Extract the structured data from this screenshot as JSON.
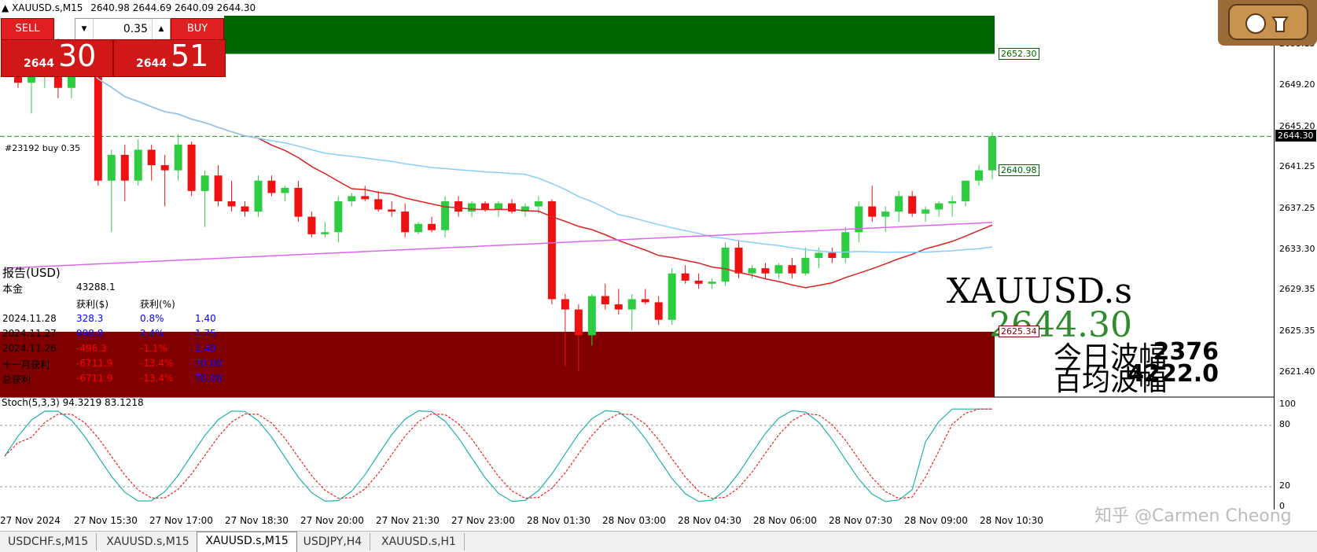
{
  "header": {
    "symbol": "XAUUSD.s,M15",
    "ohlc": "2640.98 2644.69 2640.09 2644.30"
  },
  "trade_panel": {
    "sell_label": "SELL",
    "buy_label": "BUY",
    "lot": "0.35",
    "sell_big": "2644",
    "sell_pts": "30",
    "buy_big": "2644",
    "buy_pts": "51"
  },
  "price_axis": {
    "labels": [
      "2653.15",
      "2649.20",
      "2645.20",
      "2641.25",
      "2637.25",
      "2633.30",
      "2629.35",
      "2625.35",
      "2621.40"
    ],
    "current_price": "2644.30",
    "tp_label": "2652.30",
    "sl_label": "2625.34",
    "close_label": "2640.98"
  },
  "order_label": "#23192 buy 0.35",
  "report": {
    "title": "报告(USD)",
    "capital_label": "本金",
    "capital_value": "43288.1",
    "col_profit": "获利($)",
    "col_profit_pct": "获利(%)",
    "rows": [
      {
        "date": "2024.11.28",
        "profit": "328.3",
        "pct": "0.8%",
        "extra": "1.40",
        "color": "#0000ff"
      },
      {
        "date": "2024.11.27",
        "profit": "998.8",
        "pct": "2.4%",
        "extra": "1.75",
        "color": "#0000ff"
      },
      {
        "date": "2024.11.26",
        "profit": "-496.3",
        "pct": "-1.1%",
        "extra": "1.49",
        "color": "#ff0000"
      },
      {
        "date": "十一月获利",
        "profit": "-6711.9",
        "pct": "-13.4%",
        "extra": "70.00",
        "color": "#ff0000"
      },
      {
        "date": "总获利",
        "profit": "-6711.9",
        "pct": "-13.4%",
        "extra": "70.00",
        "color": "#ff0000"
      }
    ]
  },
  "overlay": {
    "symbol": "XAUUSD.s",
    "price": "2644.30",
    "today_range_label": "今日波幅",
    "today_range_value": "2376",
    "avg_range_label": "百均波幅",
    "avg_range_value": "4222.0"
  },
  "stoch": {
    "label": "Stoch(5,3,3) 94.3219 83.1218",
    "axis": [
      "100",
      "80",
      "20",
      "0"
    ]
  },
  "time_axis": [
    "27 Nov 2024",
    "27 Nov 15:30",
    "27 Nov 17:00",
    "27 Nov 18:30",
    "27 Nov 20:00",
    "27 Nov 21:30",
    "27 Nov 23:00",
    "28 Nov 01:30",
    "28 Nov 03:00",
    "28 Nov 04:30",
    "28 Nov 06:00",
    "28 Nov 07:30",
    "28 Nov 09:00",
    "28 Nov 10:30"
  ],
  "tabs": [
    "USDCHF.s,M15",
    "XAUUSD.s,M15",
    "XAUUSD.s,M15",
    "USDJPY,H4",
    "XAUUSD.s,H1"
  ],
  "active_tab": 2,
  "watermark": "知乎 @Carmen Cheong",
  "chart_data": {
    "type": "candlestick",
    "ylim": [
      2619.0,
      2656.0
    ],
    "candles": [
      [
        2652.0,
        2653.5,
        2651.0,
        2652.5
      ],
      [
        2652.5,
        2653.0,
        2649.0,
        2649.5
      ],
      [
        2649.5,
        2651.0,
        2646.5,
        2650.5
      ],
      [
        2650.5,
        2652.5,
        2649.0,
        2652.0
      ],
      [
        2652.0,
        2653.8,
        2648.0,
        2649.0
      ],
      [
        2649.0,
        2653.0,
        2648.0,
        2652.5
      ],
      [
        2652.5,
        2654.0,
        2651.5,
        2653.0
      ],
      [
        2653.0,
        2653.8,
        2639.5,
        2640.0
      ],
      [
        2640.0,
        2643.0,
        2635.0,
        2642.5
      ],
      [
        2642.5,
        2643.5,
        2638.0,
        2640.0
      ],
      [
        2640.0,
        2644.0,
        2639.5,
        2643.0
      ],
      [
        2643.0,
        2643.5,
        2640.0,
        2641.5
      ],
      [
        2641.5,
        2642.5,
        2637.5,
        2641.0
      ],
      [
        2641.0,
        2644.5,
        2640.0,
        2643.5
      ],
      [
        2643.5,
        2643.8,
        2638.5,
        2639.0
      ],
      [
        2639.0,
        2641.0,
        2635.5,
        2640.5
      ],
      [
        2640.5,
        2641.5,
        2637.5,
        2638.0
      ],
      [
        2638.0,
        2640.0,
        2637.0,
        2637.5
      ],
      [
        2637.5,
        2638.0,
        2636.5,
        2637.0
      ],
      [
        2637.0,
        2640.5,
        2636.5,
        2640.0
      ],
      [
        2640.0,
        2640.5,
        2638.5,
        2638.8
      ],
      [
        2638.8,
        2639.5,
        2638.0,
        2639.3
      ],
      [
        2639.3,
        2640.0,
        2636.0,
        2636.5
      ],
      [
        2636.5,
        2637.0,
        2634.5,
        2634.8
      ],
      [
        2634.8,
        2636.0,
        2634.5,
        2635.0
      ],
      [
        2635.0,
        2638.5,
        2634.0,
        2638.0
      ],
      [
        2638.0,
        2638.8,
        2637.5,
        2638.5
      ],
      [
        2638.5,
        2639.5,
        2638.0,
        2638.2
      ],
      [
        2638.2,
        2639.0,
        2637.0,
        2637.2
      ],
      [
        2637.2,
        2638.0,
        2636.5,
        2637.0
      ],
      [
        2637.0,
        2637.8,
        2634.5,
        2635.0
      ],
      [
        2635.0,
        2636.0,
        2634.8,
        2635.8
      ],
      [
        2635.8,
        2636.5,
        2635.0,
        2635.2
      ],
      [
        2635.2,
        2638.5,
        2634.5,
        2638.0
      ],
      [
        2638.0,
        2638.5,
        2636.5,
        2637.0
      ],
      [
        2637.0,
        2638.0,
        2636.5,
        2637.8
      ],
      [
        2637.8,
        2638.0,
        2637.0,
        2637.2
      ],
      [
        2637.2,
        2638.0,
        2636.5,
        2637.8
      ],
      [
        2637.8,
        2638.2,
        2636.8,
        2637.0
      ],
      [
        2637.0,
        2637.8,
        2636.5,
        2637.5
      ],
      [
        2637.5,
        2638.5,
        2636.8,
        2638.0
      ],
      [
        2638.0,
        2638.2,
        2628.0,
        2628.5
      ],
      [
        2628.5,
        2629.0,
        2622.0,
        2627.5
      ],
      [
        2627.5,
        2628.0,
        2621.5,
        2625.0
      ],
      [
        2625.0,
        2629.0,
        2624.0,
        2628.8
      ],
      [
        2628.8,
        2630.0,
        2627.5,
        2628.0
      ],
      [
        2628.0,
        2629.5,
        2627.0,
        2627.5
      ],
      [
        2627.5,
        2629.0,
        2625.5,
        2628.5
      ],
      [
        2628.5,
        2629.5,
        2628.0,
        2628.2
      ],
      [
        2628.2,
        2628.8,
        2626.0,
        2626.5
      ],
      [
        2626.5,
        2631.5,
        2626.0,
        2631.0
      ],
      [
        2631.0,
        2631.8,
        2630.0,
        2630.3
      ],
      [
        2630.3,
        2631.0,
        2629.5,
        2630.0
      ],
      [
        2630.0,
        2630.5,
        2629.5,
        2630.2
      ],
      [
        2630.2,
        2634.0,
        2629.8,
        2633.5
      ],
      [
        2633.5,
        2634.2,
        2630.5,
        2631.0
      ],
      [
        2631.0,
        2631.8,
        2630.5,
        2631.5
      ],
      [
        2631.5,
        2632.0,
        2630.5,
        2631.0
      ],
      [
        2631.0,
        2632.0,
        2630.5,
        2631.8
      ],
      [
        2631.8,
        2632.5,
        2630.5,
        2631.0
      ],
      [
        2631.0,
        2633.5,
        2630.8,
        2632.5
      ],
      [
        2632.5,
        2633.5,
        2631.5,
        2633.0
      ],
      [
        2633.0,
        2633.5,
        2632.0,
        2632.5
      ],
      [
        2632.5,
        2635.5,
        2632.0,
        2635.0
      ],
      [
        2635.0,
        2638.0,
        2634.0,
        2637.5
      ],
      [
        2637.5,
        2639.5,
        2636.0,
        2636.5
      ],
      [
        2636.5,
        2637.5,
        2635.0,
        2637.0
      ],
      [
        2637.0,
        2639.0,
        2636.0,
        2638.5
      ],
      [
        2638.5,
        2639.0,
        2636.5,
        2636.8
      ],
      [
        2636.8,
        2637.5,
        2636.0,
        2637.2
      ],
      [
        2637.2,
        2638.0,
        2636.5,
        2637.8
      ],
      [
        2637.8,
        2638.5,
        2636.5,
        2638.0
      ],
      [
        2638.0,
        2640.0,
        2637.5,
        2640.0
      ],
      [
        2640.0,
        2641.5,
        2639.5,
        2641.0
      ],
      [
        2641.0,
        2644.7,
        2640.1,
        2644.3
      ]
    ]
  }
}
